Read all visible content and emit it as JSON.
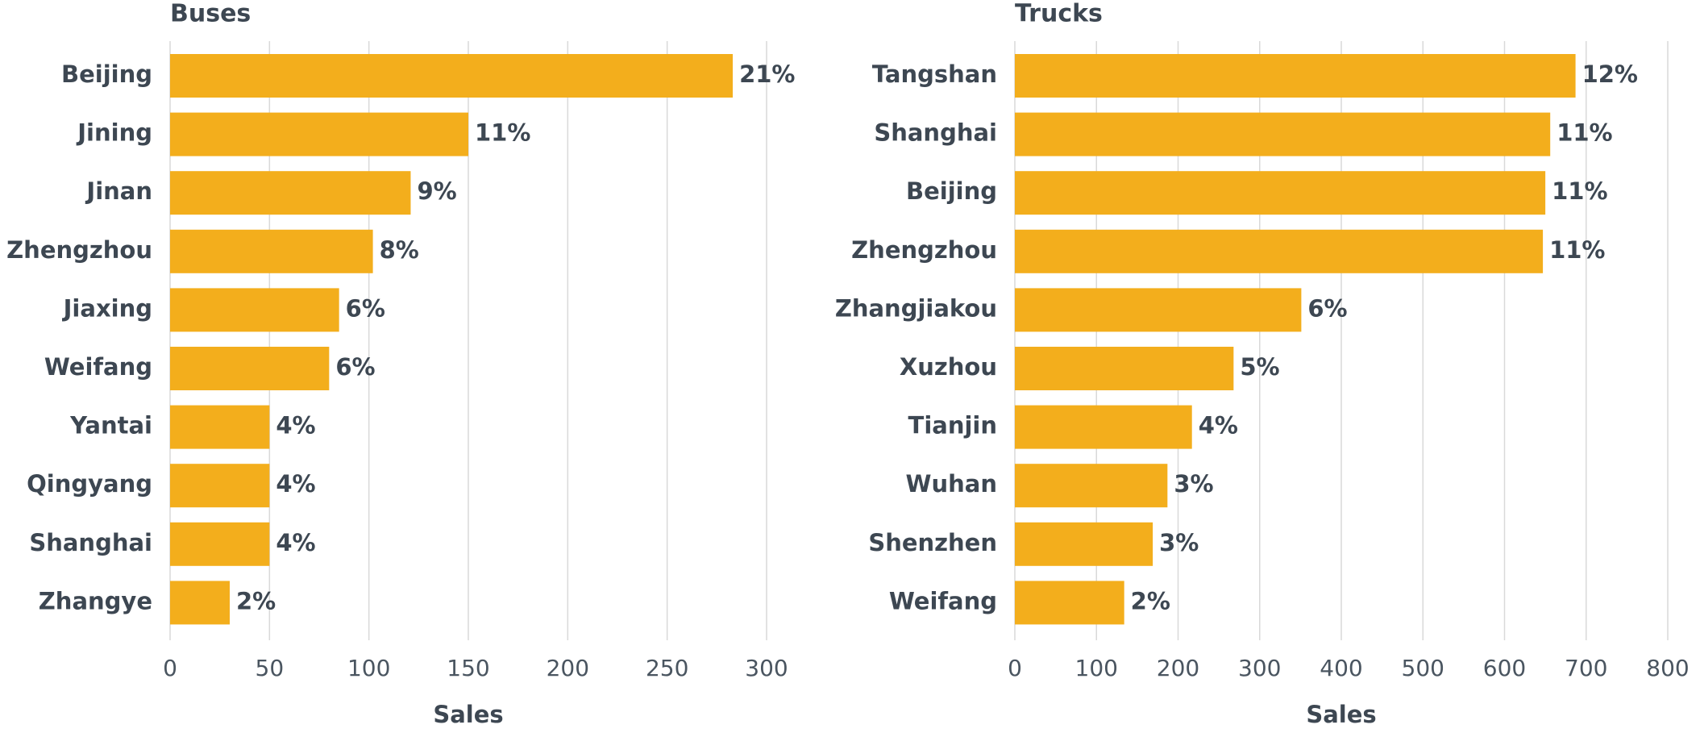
{
  "chart_data": [
    {
      "type": "bar",
      "orientation": "horizontal",
      "title": "Buses",
      "x_label": "Sales",
      "categories": [
        "Beijing",
        "Jining",
        "Jinan",
        "Zhengzhou",
        "Jiaxing",
        "Weifang",
        "Yantai",
        "Qingyang",
        "Shanghai",
        "Zhangye"
      ],
      "values": [
        283,
        150,
        121,
        102,
        85,
        80,
        50,
        50,
        50,
        30
      ],
      "share_labels": [
        "21%",
        "11%",
        "9%",
        "8%",
        "6%",
        "6%",
        "4%",
        "4%",
        "4%",
        "2%"
      ],
      "color": "#f3ae1c",
      "xlim": [
        0,
        300
      ],
      "xticks": [
        0,
        50,
        100,
        150,
        200,
        250,
        300
      ],
      "grid": true
    },
    {
      "type": "bar",
      "orientation": "horizontal",
      "title": "Trucks",
      "x_label": "Sales",
      "categories": [
        "Tangshan",
        "Shanghai",
        "Beijing",
        "Zhengzhou",
        "Zhangjiakou",
        "Xuzhou",
        "Tianjin",
        "Wuhan",
        "Shenzhen",
        "Weifang"
      ],
      "values": [
        687,
        656,
        650,
        647,
        351,
        268,
        217,
        187,
        169,
        134
      ],
      "share_labels": [
        "12%",
        "11%",
        "11%",
        "11%",
        "6%",
        "5%",
        "4%",
        "3%",
        "3%",
        "2%"
      ],
      "color": "#f3ae1c",
      "xlim": [
        0,
        800
      ],
      "xticks": [
        0,
        100,
        200,
        300,
        400,
        500,
        600,
        700,
        800
      ],
      "grid": true
    }
  ]
}
